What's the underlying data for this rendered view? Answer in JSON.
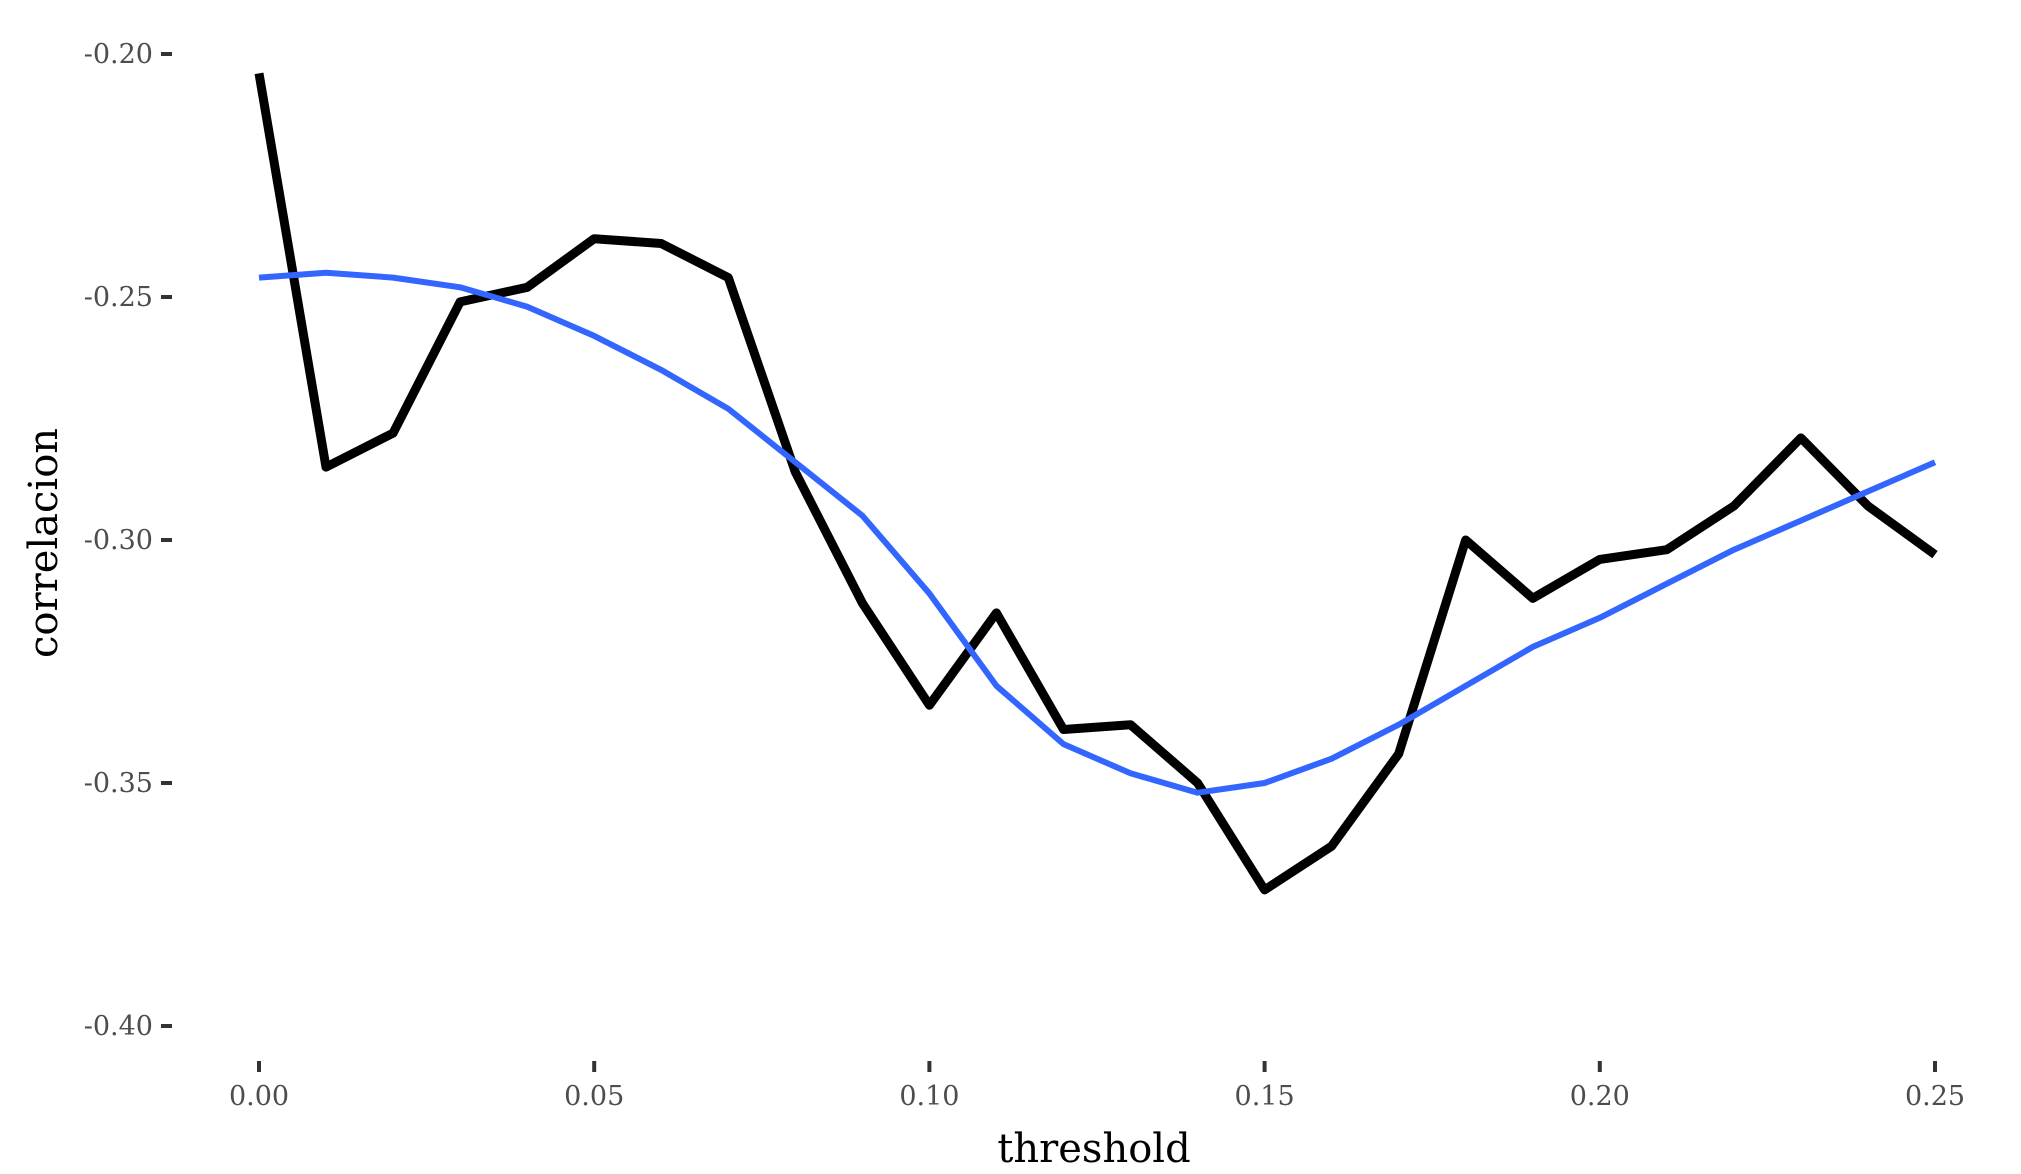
{
  "chart_data": {
    "type": "line",
    "title": "",
    "xlabel": "threshold",
    "ylabel": "correlacion",
    "xlim": [
      0.0,
      0.25
    ],
    "ylim": [
      -0.4,
      -0.2
    ],
    "x_ticks": [
      0.0,
      0.05,
      0.1,
      0.15,
      0.2,
      0.25
    ],
    "x_tick_labels": [
      "0.00",
      "0.05",
      "0.10",
      "0.15",
      "0.20",
      "0.25"
    ],
    "y_ticks": [
      -0.2,
      -0.25,
      -0.3,
      -0.35,
      -0.4
    ],
    "y_tick_labels": [
      "-0.20",
      "-0.25",
      "-0.30",
      "-0.35",
      "-0.40"
    ],
    "grid": false,
    "legend": "none",
    "series": [
      {
        "style": "raw",
        "color": "#000000",
        "x": [
          0.0,
          0.01,
          0.02,
          0.03,
          0.04,
          0.05,
          0.06,
          0.07,
          0.08,
          0.09,
          0.1,
          0.11,
          0.12,
          0.13,
          0.14,
          0.15,
          0.16,
          0.17,
          0.18,
          0.19,
          0.2,
          0.21,
          0.22,
          0.23,
          0.24,
          0.25
        ],
        "values": [
          -0.204,
          -0.285,
          -0.278,
          -0.251,
          -0.248,
          -0.238,
          -0.239,
          -0.246,
          -0.286,
          -0.313,
          -0.334,
          -0.315,
          -0.339,
          -0.338,
          -0.35,
          -0.372,
          -0.363,
          -0.344,
          -0.3,
          -0.312,
          -0.304,
          -0.302,
          -0.293,
          -0.279,
          -0.293,
          -0.303
        ]
      },
      {
        "style": "smooth",
        "color": "#3366FF",
        "x": [
          0.0,
          0.01,
          0.02,
          0.03,
          0.04,
          0.05,
          0.06,
          0.07,
          0.08,
          0.09,
          0.1,
          0.11,
          0.12,
          0.13,
          0.14,
          0.15,
          0.16,
          0.17,
          0.18,
          0.19,
          0.2,
          0.21,
          0.22,
          0.23,
          0.24,
          0.25
        ],
        "values": [
          -0.246,
          -0.245,
          -0.246,
          -0.248,
          -0.252,
          -0.258,
          -0.265,
          -0.273,
          -0.284,
          -0.295,
          -0.311,
          -0.33,
          -0.342,
          -0.348,
          -0.352,
          -0.35,
          -0.345,
          -0.338,
          -0.33,
          -0.322,
          -0.316,
          -0.309,
          -0.302,
          -0.296,
          -0.29,
          -0.284
        ]
      }
    ]
  }
}
